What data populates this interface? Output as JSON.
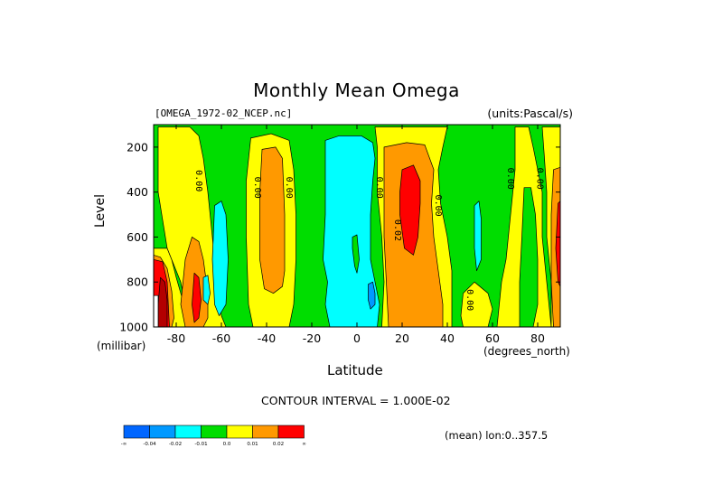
{
  "title": "Monthly Mean Omega",
  "dataset": "[OMEGA_1972-02_NCEP.nc]",
  "units": "(units:Pascal/s)",
  "contour_interval": "CONTOUR INTERVAL = 1.000E-02",
  "mean_note": "(mean) lon:0..357.5",
  "colors": {
    "lt_m04": "#0066ff",
    "m04_m02": "#0099ff",
    "m02_m01": "#00ffff",
    "m01_0": "#00dd00",
    "0_001": "#ffff00",
    "001_002": "#ff9900",
    "gt_002": "#ff0000",
    "gt_008": "#b30000"
  },
  "colorbar": {
    "labels": [
      "-∞",
      "-0.04",
      "-0.02",
      "-0.01",
      "0.0",
      "0.01",
      "0.02",
      "∞"
    ]
  },
  "chart_data": {
    "type": "heatmap",
    "title": "Monthly Mean Omega",
    "xlabel": "Latitude",
    "xunit": "(degrees_north)",
    "ylabel": "Level",
    "yunit": "(millibar)",
    "xlim": [
      -90,
      90
    ],
    "ylim": [
      1000,
      100
    ],
    "xticks": [
      -80,
      -60,
      -40,
      -20,
      0,
      20,
      40,
      60,
      80
    ],
    "xtick_labels": [
      "-80",
      "-60",
      "-40",
      "-20",
      "0",
      "20",
      "40",
      "60",
      "80"
    ],
    "yticks": [
      200,
      400,
      600,
      800,
      1000
    ],
    "ytick_labels": [
      "200",
      "400",
      "600",
      "800",
      "1000"
    ],
    "contour_levels": [
      -0.04,
      -0.02,
      -0.01,
      0.0,
      0.01,
      0.02
    ],
    "contour_labels": [
      {
        "text": "0.00",
        "lat": -70,
        "lev": 350
      },
      {
        "text": "0.00",
        "lat": -44,
        "lev": 380
      },
      {
        "text": "0.00",
        "lat": -30,
        "lev": 380
      },
      {
        "text": "0.00",
        "lat": 10,
        "lev": 380
      },
      {
        "text": "0.02",
        "lat": 18,
        "lev": 570
      },
      {
        "text": "0.00",
        "lat": 36,
        "lev": 460
      },
      {
        "text": "0.00",
        "lat": 50,
        "lev": 880
      },
      {
        "text": "0.00",
        "lat": 68,
        "lev": 340
      },
      {
        "text": "0.00",
        "lat": 81,
        "lev": 340
      }
    ],
    "regions": [
      {
        "name": "west-edge-positive",
        "class": "0_001",
        "pts": [
          [
            -90,
            650
          ],
          [
            -88,
            650
          ],
          [
            -84,
            650
          ],
          [
            -82,
            700
          ],
          [
            -80,
            780
          ],
          [
            -78,
            850
          ],
          [
            -76,
            920
          ],
          [
            -74,
            1000
          ],
          [
            -90,
            1000
          ]
        ]
      },
      {
        "name": "yellow-sh-column",
        "class": "0_001",
        "pts": [
          [
            -88,
            110
          ],
          [
            -74,
            110
          ],
          [
            -70,
            150
          ],
          [
            -68,
            250
          ],
          [
            -66,
            400
          ],
          [
            -64,
            600
          ],
          [
            -62,
            800
          ],
          [
            -60,
            950
          ],
          [
            -58,
            1000
          ],
          [
            -74,
            1000
          ],
          [
            -78,
            800
          ],
          [
            -84,
            650
          ],
          [
            -88,
            400
          ]
        ]
      },
      {
        "name": "orange-sh-low",
        "class": "001_002",
        "pts": [
          [
            -73,
            600
          ],
          [
            -70,
            620
          ],
          [
            -68,
            700
          ],
          [
            -66,
            850
          ],
          [
            -66,
            960
          ],
          [
            -68,
            1000
          ],
          [
            -76,
            1000
          ],
          [
            -78,
            900
          ],
          [
            -76,
            700
          ]
        ]
      },
      {
        "name": "red-sh-low",
        "class": "gt_002",
        "pts": [
          [
            -72,
            760
          ],
          [
            -70,
            780
          ],
          [
            -69,
            880
          ],
          [
            -70,
            960
          ],
          [
            -72,
            980
          ],
          [
            -73,
            900
          ]
        ]
      },
      {
        "name": "orange-polar-edge",
        "class": "001_002",
        "pts": [
          [
            -90,
            680
          ],
          [
            -87,
            690
          ],
          [
            -84,
            740
          ],
          [
            -82,
            840
          ],
          [
            -81,
            960
          ],
          [
            -82,
            1000
          ],
          [
            -90,
            1000
          ]
        ]
      },
      {
        "name": "red-polar-edge",
        "class": "gt_002",
        "pts": [
          [
            -90,
            700
          ],
          [
            -86,
            710
          ],
          [
            -84,
            800
          ],
          [
            -83,
            1000
          ],
          [
            -90,
            1000
          ]
        ]
      },
      {
        "name": "dark-polar-core",
        "class": "gt_008",
        "pts": [
          [
            -87,
            780
          ],
          [
            -85,
            800
          ],
          [
            -84,
            880
          ],
          [
            -84,
            1000
          ],
          [
            -88,
            1000
          ],
          [
            -88,
            900
          ]
        ]
      },
      {
        "name": "white-polar-gap",
        "class": "white",
        "pts": [
          [
            -90,
            860
          ],
          [
            -88,
            860
          ],
          [
            -88,
            1000
          ],
          [
            -90,
            1000
          ]
        ]
      },
      {
        "name": "cyan-sh-column",
        "class": "m02_m01",
        "pts": [
          [
            -63,
            460
          ],
          [
            -60,
            440
          ],
          [
            -58,
            500
          ],
          [
            -57,
            700
          ],
          [
            -58,
            900
          ],
          [
            -61,
            950
          ],
          [
            -63,
            900
          ],
          [
            -64,
            700
          ]
        ]
      },
      {
        "name": "cyan-sh-small",
        "class": "m02_m01",
        "pts": [
          [
            -68,
            780
          ],
          [
            -66,
            770
          ],
          [
            -65,
            850
          ],
          [
            -66,
            900
          ],
          [
            -68,
            880
          ]
        ]
      },
      {
        "name": "yellow-midlat-sh",
        "class": "0_001",
        "pts": [
          [
            -47,
            160
          ],
          [
            -38,
            140
          ],
          [
            -30,
            170
          ],
          [
            -28,
            300
          ],
          [
            -27,
            500
          ],
          [
            -27,
            700
          ],
          [
            -28,
            900
          ],
          [
            -30,
            1000
          ],
          [
            -46,
            1000
          ],
          [
            -48,
            900
          ],
          [
            -49,
            600
          ],
          [
            -49,
            350
          ]
        ]
      },
      {
        "name": "orange-midlat-sh",
        "class": "001_002",
        "pts": [
          [
            -42,
            210
          ],
          [
            -36,
            200
          ],
          [
            -33,
            250
          ],
          [
            -32,
            500
          ],
          [
            -32,
            750
          ],
          [
            -33,
            820
          ],
          [
            -37,
            850
          ],
          [
            -41,
            830
          ],
          [
            -43,
            700
          ],
          [
            -43,
            400
          ]
        ]
      },
      {
        "name": "cyan-tropics",
        "class": "m02_m01",
        "pts": [
          [
            -14,
            170
          ],
          [
            -8,
            150
          ],
          [
            2,
            150
          ],
          [
            7,
            180
          ],
          [
            8,
            250
          ],
          [
            7,
            350
          ],
          [
            6,
            500
          ],
          [
            6,
            700
          ],
          [
            8,
            800
          ],
          [
            10,
            900
          ],
          [
            9,
            1000
          ],
          [
            -12,
            1000
          ],
          [
            -14,
            900
          ],
          [
            -13,
            800
          ],
          [
            -15,
            700
          ],
          [
            -14,
            500
          ],
          [
            -14,
            300
          ]
        ]
      },
      {
        "name": "blue-equator",
        "class": "m04_m02",
        "pts": [
          [
            5,
            810
          ],
          [
            7,
            800
          ],
          [
            8,
            850
          ],
          [
            8,
            900
          ],
          [
            6,
            920
          ],
          [
            5,
            880
          ]
        ]
      },
      {
        "name": "green-strip-tropics",
        "class": "m01_0",
        "pts": [
          [
            -2,
            600
          ],
          [
            0,
            590
          ],
          [
            1,
            700
          ],
          [
            0,
            760
          ],
          [
            -1,
            730
          ],
          [
            -2,
            650
          ]
        ]
      },
      {
        "name": "yellow-nh-column",
        "class": "0_001",
        "pts": [
          [
            8,
            110
          ],
          [
            40,
            110
          ],
          [
            38,
            200
          ],
          [
            36,
            300
          ],
          [
            37,
            450
          ],
          [
            40,
            600
          ],
          [
            42,
            750
          ],
          [
            42,
            900
          ],
          [
            42,
            1000
          ],
          [
            11,
            1000
          ],
          [
            12,
            800
          ],
          [
            11,
            600
          ],
          [
            9,
            400
          ],
          [
            9,
            200
          ]
        ]
      },
      {
        "name": "orange-nh",
        "class": "001_002",
        "pts": [
          [
            12,
            200
          ],
          [
            22,
            180
          ],
          [
            30,
            190
          ],
          [
            34,
            300
          ],
          [
            33,
            450
          ],
          [
            34,
            600
          ],
          [
            36,
            750
          ],
          [
            38,
            900
          ],
          [
            38,
            1000
          ],
          [
            14,
            1000
          ],
          [
            13,
            800
          ],
          [
            12,
            600
          ],
          [
            12,
            400
          ]
        ]
      },
      {
        "name": "red-nh",
        "class": "gt_002",
        "pts": [
          [
            20,
            300
          ],
          [
            25,
            280
          ],
          [
            28,
            350
          ],
          [
            28,
            450
          ],
          [
            27,
            600
          ],
          [
            25,
            680
          ],
          [
            21,
            650
          ],
          [
            19,
            500
          ],
          [
            19,
            400
          ]
        ]
      },
      {
        "name": "yellow-nh-60",
        "class": "0_001",
        "pts": [
          [
            47,
            850
          ],
          [
            52,
            800
          ],
          [
            58,
            850
          ],
          [
            60,
            920
          ],
          [
            58,
            1000
          ],
          [
            47,
            1000
          ],
          [
            46,
            950
          ]
        ]
      },
      {
        "name": "cyan-nh-55",
        "class": "m02_m01",
        "pts": [
          [
            52,
            460
          ],
          [
            54,
            440
          ],
          [
            55,
            520
          ],
          [
            55,
            700
          ],
          [
            53,
            750
          ],
          [
            52,
            650
          ]
        ]
      },
      {
        "name": "yellow-nh-high",
        "class": "0_001",
        "pts": [
          [
            70,
            110
          ],
          [
            76,
            110
          ],
          [
            78,
            200
          ],
          [
            80,
            300
          ],
          [
            82,
            400
          ],
          [
            82,
            600
          ],
          [
            84,
            800
          ],
          [
            86,
            1000
          ],
          [
            62,
            1000
          ],
          [
            64,
            800
          ],
          [
            66,
            700
          ],
          [
            68,
            500
          ],
          [
            70,
            300
          ]
        ]
      },
      {
        "name": "green-nh-high",
        "class": "m01_0",
        "pts": [
          [
            74,
            380
          ],
          [
            77,
            380
          ],
          [
            79,
            500
          ],
          [
            80,
            700
          ],
          [
            80,
            900
          ],
          [
            78,
            1000
          ],
          [
            72,
            1000
          ],
          [
            72,
            800
          ],
          [
            73,
            600
          ]
        ]
      },
      {
        "name": "yellow-nh-pole",
        "class": "0_001",
        "pts": [
          [
            82,
            110
          ],
          [
            90,
            110
          ],
          [
            90,
            1000
          ],
          [
            86,
            1000
          ],
          [
            86,
            800
          ],
          [
            84,
            600
          ],
          [
            84,
            400
          ],
          [
            83,
            250
          ]
        ]
      },
      {
        "name": "orange-nh-pole",
        "class": "001_002",
        "pts": [
          [
            87,
            300
          ],
          [
            90,
            290
          ],
          [
            90,
            1000
          ],
          [
            87,
            1000
          ],
          [
            86,
            800
          ],
          [
            86,
            500
          ]
        ]
      },
      {
        "name": "red-nh-pole",
        "class": "gt_002",
        "pts": [
          [
            89,
            450
          ],
          [
            90,
            440
          ],
          [
            90,
            820
          ],
          [
            89,
            800
          ],
          [
            88,
            650
          ]
        ]
      }
    ]
  }
}
